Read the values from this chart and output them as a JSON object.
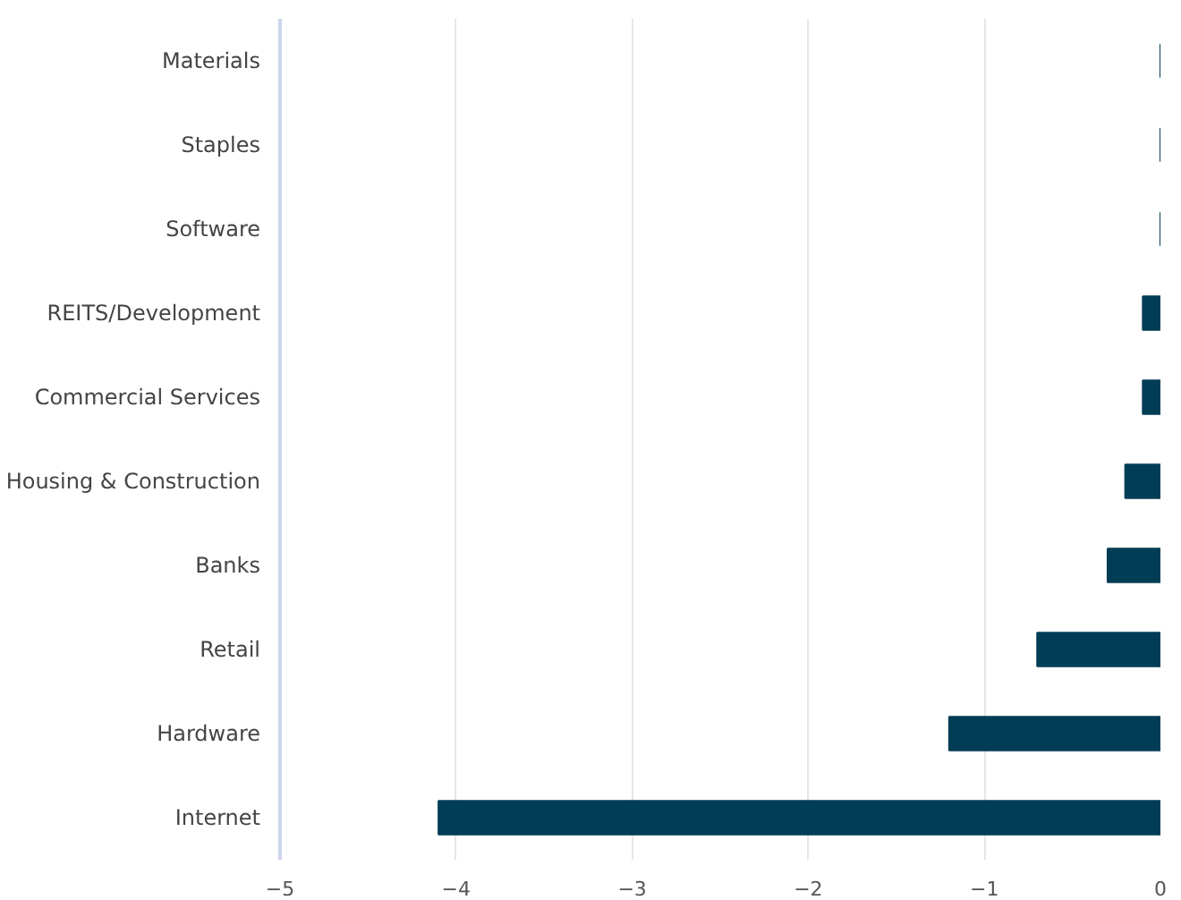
{
  "chart_data": {
    "type": "bar",
    "orientation": "horizontal",
    "categories": [
      "Materials",
      "Staples",
      "Software",
      "REITS/Development",
      "Commercial Services",
      "Housing & Construction",
      "Banks",
      "Retail",
      "Hardware",
      "Internet"
    ],
    "values": [
      0,
      0,
      0,
      -0.1,
      -0.1,
      -0.2,
      -0.3,
      -0.7,
      -1.2,
      -4.1
    ],
    "color": "#023d56",
    "xlim": [
      -5,
      0
    ],
    "xticks": [
      {
        "value": -5,
        "label": "−5"
      },
      {
        "value": -4,
        "label": "−4"
      },
      {
        "value": -3,
        "label": "−3"
      },
      {
        "value": -2,
        "label": "−2"
      },
      {
        "value": -1,
        "label": "−1"
      },
      0
    ],
    "grid": "x"
  }
}
